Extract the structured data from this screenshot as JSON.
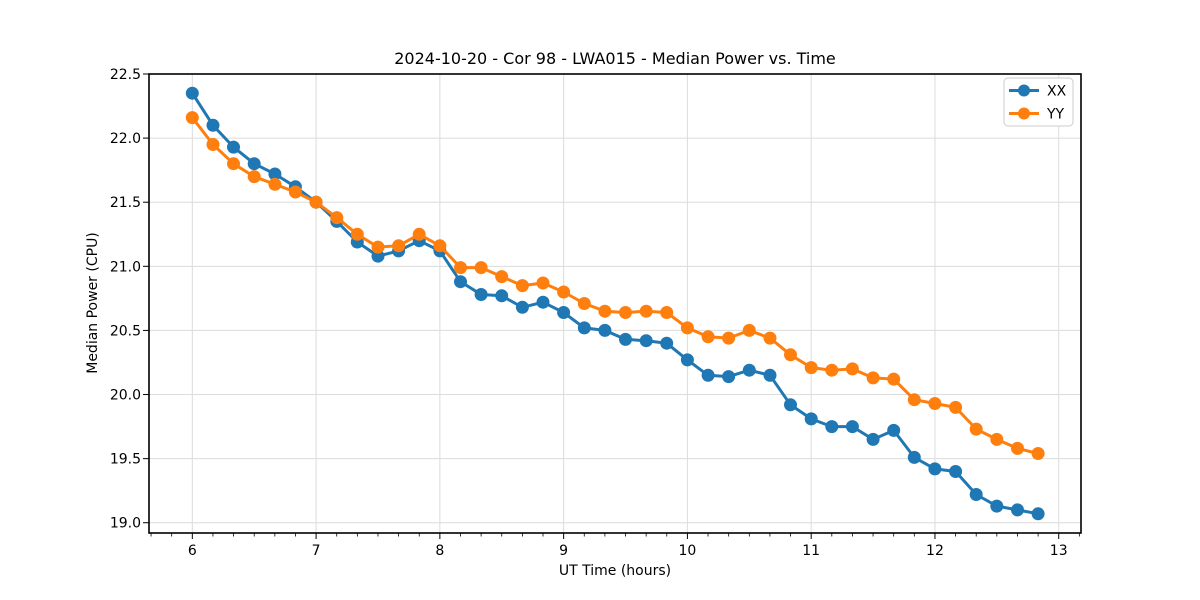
{
  "chart_data": {
    "type": "line",
    "title": "2024-10-20 - Cor 98 - LWA015 - Median Power vs. Time",
    "xlabel": "UT Time (hours)",
    "ylabel": "Median Power (CPU)",
    "xlim": [
      5.65,
      13.18
    ],
    "ylim": [
      18.92,
      22.5
    ],
    "grid": true,
    "legend_position": "upper right",
    "x_ticks": [
      6,
      7,
      8,
      9,
      10,
      11,
      12,
      13
    ],
    "x_tick_labels": [
      "6",
      "7",
      "8",
      "9",
      "10",
      "11",
      "12",
      "13"
    ],
    "x_minor_divisions": 6,
    "y_ticks": [
      19.0,
      19.5,
      20.0,
      20.5,
      21.0,
      21.5,
      22.0,
      22.5
    ],
    "y_tick_labels": [
      "19.0",
      "19.5",
      "20.0",
      "20.5",
      "21.0",
      "21.5",
      "22.0",
      "22.5"
    ],
    "x": [
      6,
      6.167,
      6.333,
      6.5,
      6.667,
      6.833,
      7,
      7.167,
      7.333,
      7.5,
      7.667,
      7.833,
      8,
      8.167,
      8.333,
      8.5,
      8.667,
      8.833,
      9,
      9.167,
      9.333,
      9.5,
      9.667,
      9.833,
      10,
      10.167,
      10.333,
      10.5,
      10.667,
      10.833,
      11,
      11.167,
      11.333,
      11.5,
      11.667,
      11.833,
      12,
      12.167,
      12.333,
      12.5,
      12.667,
      12.833
    ],
    "series": [
      {
        "name": "XX",
        "color": "#1f77b4",
        "values": [
          22.35,
          22.1,
          21.93,
          21.8,
          21.72,
          21.62,
          21.5,
          21.35,
          21.19,
          21.08,
          21.12,
          21.2,
          21.12,
          20.88,
          20.78,
          20.77,
          20.68,
          20.72,
          20.64,
          20.52,
          20.5,
          20.43,
          20.42,
          20.4,
          20.27,
          20.15,
          20.14,
          20.19,
          20.15,
          19.92,
          19.81,
          19.75,
          19.75,
          19.65,
          19.72,
          19.51,
          19.42,
          19.4,
          19.22,
          19.13,
          19.1,
          19.07
        ]
      },
      {
        "name": "YY",
        "color": "#ff7f0e",
        "values": [
          22.16,
          21.95,
          21.8,
          21.7,
          21.64,
          21.58,
          21.5,
          21.38,
          21.25,
          21.15,
          21.16,
          21.25,
          21.16,
          20.99,
          20.99,
          20.92,
          20.85,
          20.87,
          20.8,
          20.71,
          20.65,
          20.64,
          20.65,
          20.64,
          20.52,
          20.45,
          20.44,
          20.5,
          20.44,
          20.31,
          20.21,
          20.19,
          20.2,
          20.13,
          20.12,
          19.96,
          19.93,
          19.9,
          19.73,
          19.65,
          19.58,
          19.54
        ]
      }
    ]
  }
}
